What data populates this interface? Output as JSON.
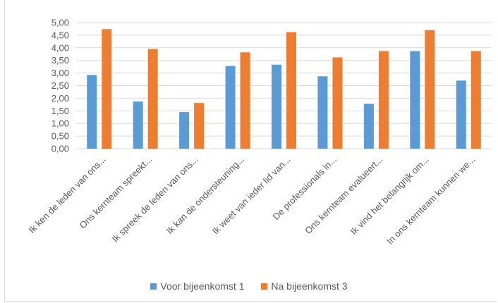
{
  "chart_data": {
    "type": "bar",
    "title": "",
    "xlabel": "",
    "ylabel": "",
    "ylim": [
      0,
      5
    ],
    "yticks": [
      "0,00",
      "0,50",
      "1,00",
      "1,50",
      "2,00",
      "2,50",
      "3,00",
      "3,50",
      "4,00",
      "4,50",
      "5,00"
    ],
    "grid": true,
    "legend_position": "bottom",
    "categories": [
      "Ik ken de leden van ons...",
      "Ons kernteam spreekt...",
      "Ik spreek de leden van ons...",
      "Ik kan de ondersteuning...",
      "Ik weet van ieder lid van...",
      "De professionals in...",
      "Ons kernteam evalueert...",
      "Ik vind het belangrijk om...",
      "In ons kernteam kunnen we..."
    ],
    "series": [
      {
        "name": "Voor bijeenkomst 1",
        "color": "#5b9bd5",
        "values": [
          2.92,
          1.87,
          1.45,
          3.28,
          3.33,
          2.87,
          1.78,
          3.87,
          2.7
        ]
      },
      {
        "name": "Na bijeenkomst 3",
        "color": "#ed7d31",
        "values": [
          4.74,
          3.95,
          1.81,
          3.82,
          4.62,
          3.62,
          3.87,
          4.7,
          3.87
        ]
      }
    ],
    "gridline_color": "#d9d9d9"
  }
}
